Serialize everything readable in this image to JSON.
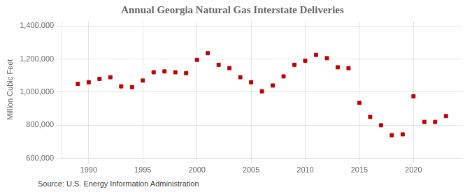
{
  "chart_data": {
    "type": "scatter",
    "title": "Annual Georgia Natural Gas Interstate Deliveries",
    "ylabel": "Million Cubic Feet",
    "annotations": [
      "Source: U.S. Energy Information Administration"
    ],
    "x": [
      1989,
      1990,
      1991,
      1992,
      1993,
      1994,
      1995,
      1996,
      1997,
      1998,
      1999,
      2000,
      2001,
      2002,
      2003,
      2004,
      2005,
      2006,
      2007,
      2008,
      2009,
      2010,
      2011,
      2012,
      2013,
      2014,
      2015,
      2016,
      2017,
      2018,
      2019,
      2020,
      2021,
      2022,
      2023
    ],
    "values": [
      1050000,
      1060000,
      1080000,
      1090000,
      1035000,
      1030000,
      1070000,
      1120000,
      1125000,
      1120000,
      1115000,
      1195000,
      1235000,
      1165000,
      1145000,
      1090000,
      1060000,
      1005000,
      1040000,
      1095000,
      1165000,
      1190000,
      1225000,
      1205000,
      1150000,
      1145000,
      935000,
      850000,
      800000,
      740000,
      745000,
      975000,
      820000,
      820000,
      855000
    ],
    "color": "#c00000",
    "marker": "square",
    "xlim": [
      1987.5,
      2024.5
    ],
    "xticks": [
      1990,
      1995,
      2000,
      2005,
      2010,
      2015,
      2020
    ],
    "ylim": [
      600000,
      1430000
    ],
    "yticks": [
      {
        "value": 600000,
        "label": "600,000"
      },
      {
        "value": 800000,
        "label": "800,000"
      },
      {
        "value": 1000000,
        "label": "1,000,000"
      },
      {
        "value": 1200000,
        "label": "1,200,000"
      },
      {
        "value": 1400000,
        "label": "1,400,000"
      }
    ],
    "grid": true
  }
}
